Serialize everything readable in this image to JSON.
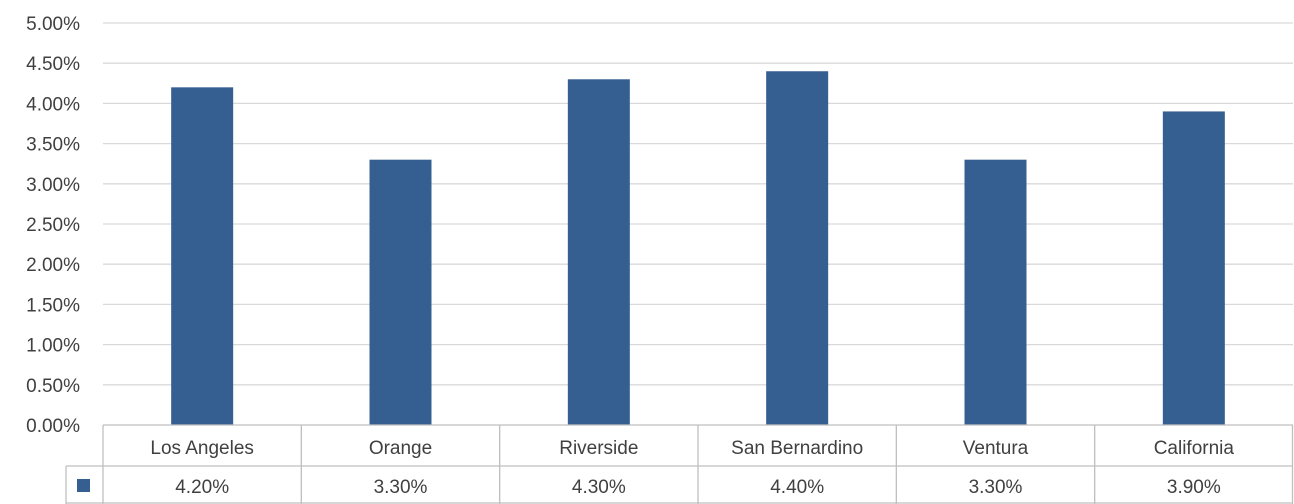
{
  "chart_data": {
    "type": "bar",
    "categories": [
      "Los Angeles",
      "Orange",
      "Riverside",
      "San Bernardino",
      "Ventura",
      "California"
    ],
    "values": [
      4.2,
      3.3,
      4.3,
      4.4,
      3.3,
      3.9
    ],
    "value_labels": [
      "4.20%",
      "3.30%",
      "4.30%",
      "4.40%",
      "3.30%",
      "3.90%"
    ],
    "y_tick_labels": [
      "0.00%",
      "0.50%",
      "1.00%",
      "1.50%",
      "2.00%",
      "2.50%",
      "3.00%",
      "3.50%",
      "4.00%",
      "4.50%",
      "5.00%"
    ],
    "ylim": [
      0,
      5
    ],
    "grid": true,
    "data_table": true,
    "bar_color": "#365f91",
    "grid_color": "#d9d9d9",
    "text_color": "#404040"
  }
}
